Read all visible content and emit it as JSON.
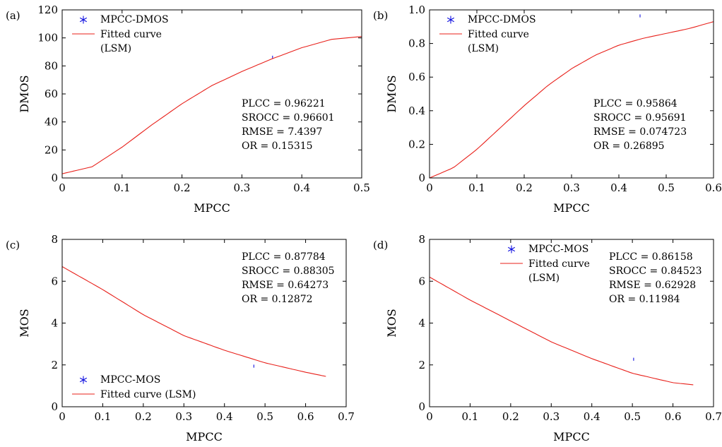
{
  "chart_data": [
    {
      "panel": "(a)",
      "type": "scatter",
      "xlabel": "MPCC",
      "ylabel": "DMOS",
      "xlim": [
        0,
        0.5
      ],
      "ylim": [
        0,
        120
      ],
      "xticks": [
        "0",
        "0.1",
        "0.2",
        "0.3",
        "0.4",
        "0.5"
      ],
      "yticks": [
        "0",
        "20",
        "40",
        "60",
        "80",
        "100",
        "120"
      ],
      "series": [
        {
          "name": "MPCC-DMOS"
        },
        {
          "name": "Fitted curve"
        }
      ],
      "legend_extra": "(LSM)",
      "legend_position": "top-left",
      "fit": {
        "x": [
          0,
          0.05,
          0.1,
          0.15,
          0.2,
          0.25,
          0.3,
          0.35,
          0.4,
          0.45,
          0.5
        ],
        "y": [
          3,
          8,
          22,
          38,
          53,
          66,
          76,
          85,
          93,
          99,
          101
        ]
      },
      "spread": 9,
      "stats": [
        "PLCC = 0.96221",
        "SROCC = 0.96601",
        "RMSE = 7.4397",
        "OR = 0.15315"
      ],
      "stats_position": "bottom-right"
    },
    {
      "panel": "(b)",
      "type": "scatter",
      "xlabel": "MPCC",
      "ylabel": "DMOS",
      "xlim": [
        0,
        0.6
      ],
      "ylim": [
        0,
        1.0
      ],
      "xticks": [
        "0",
        "0.1",
        "0.2",
        "0.3",
        "0.4",
        "0.5",
        "0.6"
      ],
      "yticks": [
        "0",
        "0.2",
        "0.4",
        "0.6",
        "0.8",
        "1.0"
      ],
      "series": [
        {
          "name": "MPCC-DMOS"
        },
        {
          "name": "Fitted curve"
        }
      ],
      "legend_extra": "(LSM)",
      "legend_position": "top-left",
      "fit": {
        "x": [
          0,
          0.05,
          0.1,
          0.15,
          0.2,
          0.25,
          0.3,
          0.35,
          0.4,
          0.45,
          0.5,
          0.55,
          0.6
        ],
        "y": [
          0,
          0.06,
          0.17,
          0.3,
          0.43,
          0.55,
          0.65,
          0.73,
          0.79,
          0.83,
          0.86,
          0.89,
          0.93
        ]
      },
      "spread": 0.08,
      "stats": [
        "PLCC = 0.95864",
        "SROCC = 0.95691",
        "RMSE = 0.074723",
        "OR = 0.26895"
      ],
      "stats_position": "bottom-right"
    },
    {
      "panel": "(c)",
      "type": "scatter",
      "xlabel": "MPCC",
      "ylabel": "MOS",
      "xlim": [
        0,
        0.7
      ],
      "ylim": [
        0,
        8
      ],
      "xticks": [
        "0",
        "0.1",
        "0.2",
        "0.3",
        "0.4",
        "0.5",
        "0.6",
        "0.7"
      ],
      "yticks": [
        "0",
        "2",
        "4",
        "6",
        "8"
      ],
      "series": [
        {
          "name": "MPCC-MOS"
        },
        {
          "name": "Fitted curve (LSM)"
        }
      ],
      "legend_extra": "",
      "legend_position": "bottom-left",
      "fit": {
        "x": [
          0,
          0.1,
          0.2,
          0.3,
          0.4,
          0.5,
          0.6,
          0.65
        ],
        "y": [
          6.7,
          5.6,
          4.4,
          3.4,
          2.7,
          2.1,
          1.65,
          1.45
        ]
      },
      "spread": 0.7,
      "stats": [
        "PLCC = 0.87784",
        "SROCC = 0.88305",
        "RMSE = 0.64273",
        "OR = 0.12872"
      ],
      "stats_position": "top-right"
    },
    {
      "panel": "(d)",
      "type": "scatter",
      "xlabel": "MPCC",
      "ylabel": "MOS",
      "xlim": [
        0,
        0.7
      ],
      "ylim": [
        0,
        8
      ],
      "xticks": [
        "0",
        "0.1",
        "0.2",
        "0.3",
        "0.4",
        "0.5",
        "0.6",
        "0.7"
      ],
      "yticks": [
        "0",
        "2",
        "4",
        "6",
        "8"
      ],
      "series": [
        {
          "name": "MPCC-MOS"
        },
        {
          "name": "Fitted curve"
        }
      ],
      "legend_extra": "(LSM)",
      "legend_position": "top-center",
      "fit": {
        "x": [
          0,
          0.1,
          0.2,
          0.3,
          0.4,
          0.5,
          0.6,
          0.65
        ],
        "y": [
          6.2,
          5.1,
          4.1,
          3.1,
          2.3,
          1.6,
          1.15,
          1.05
        ]
      },
      "spread": 0.6,
      "stats": [
        "PLCC = 0.86158",
        "SROCC = 0.84523",
        "RMSE = 0.62928",
        "OR = 0.11984"
      ],
      "stats_position": "top-right"
    }
  ],
  "colors": {
    "points": "#1010e0",
    "fit": "#e8201a"
  }
}
